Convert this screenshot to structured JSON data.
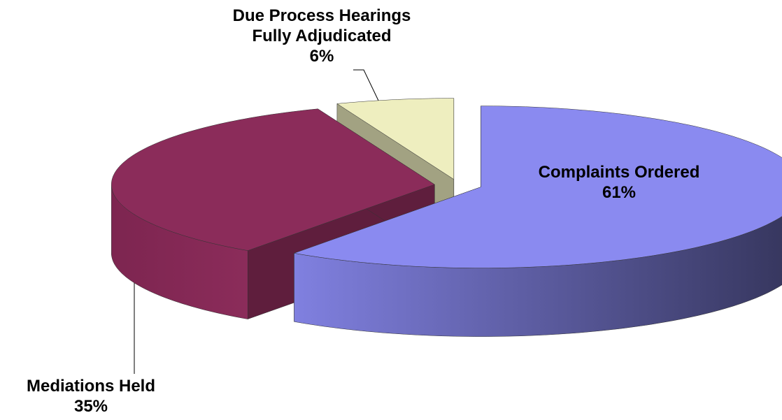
{
  "chart_data": {
    "type": "pie3d",
    "categories": [
      "Complaints Ordered",
      "Mediations Held",
      "Due Process Hearings Fully Adjudicated"
    ],
    "values": [
      61,
      35,
      6
    ],
    "value_labels": [
      "61%",
      "35%",
      "6%"
    ],
    "colors": [
      "#8a8af0",
      "#8b2c5a",
      "#eeeebf"
    ]
  }
}
